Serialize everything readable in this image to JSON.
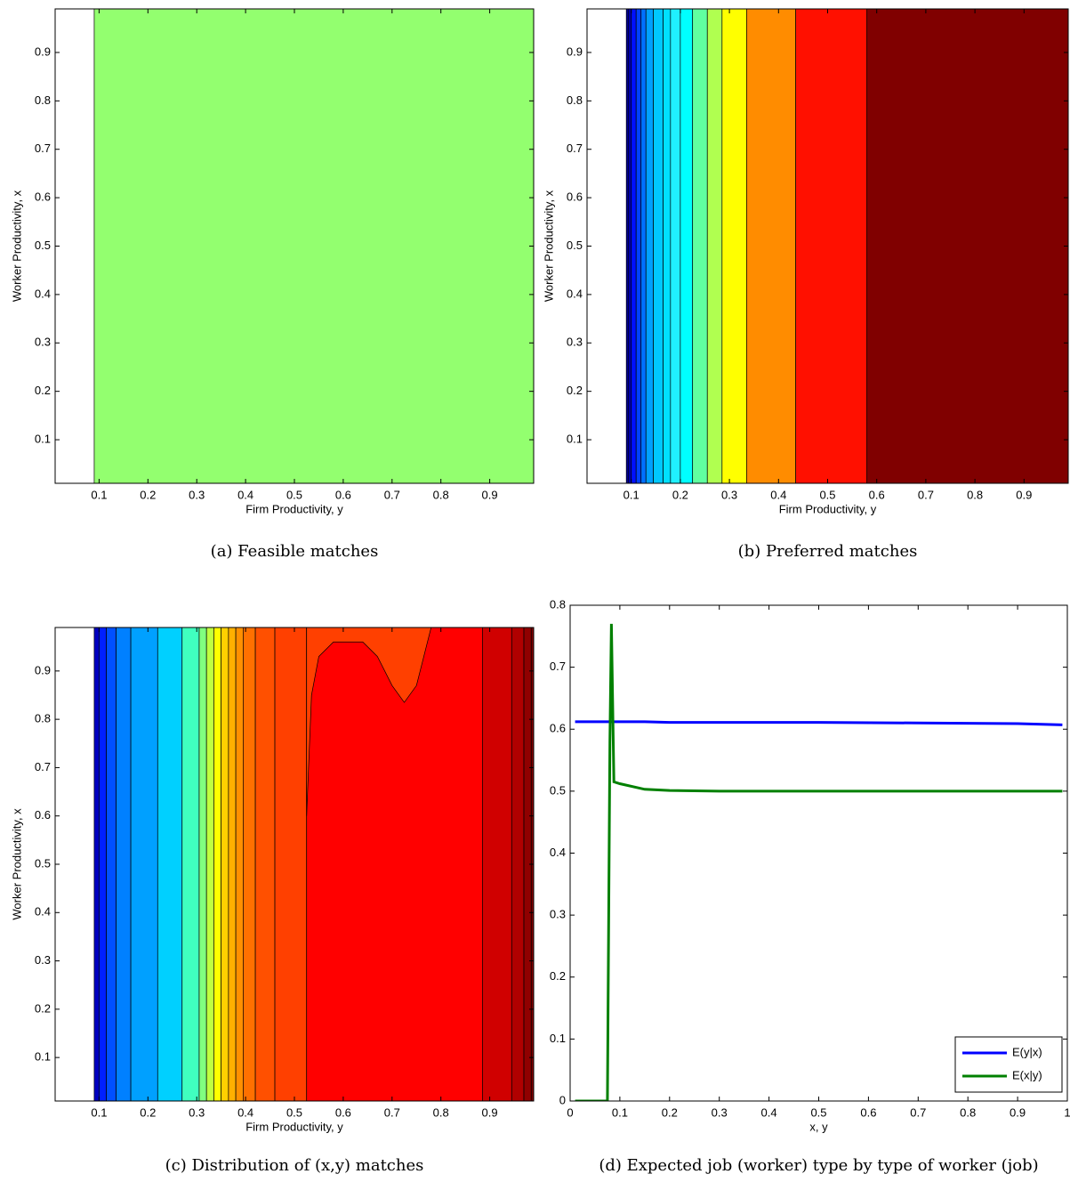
{
  "chart_data": [
    {
      "type": "contour",
      "caption": "(a)  Feasible matches",
      "xlabel": "Firm Productivity, y",
      "ylabel": "Worker Productivity, x",
      "xlim": [
        0.01,
        0.99
      ],
      "ylim": [
        0.01,
        0.99
      ],
      "xticks": [
        0.1,
        0.2,
        0.3,
        0.4,
        0.5,
        0.6,
        0.7,
        0.8,
        0.9
      ],
      "yticks": [
        0.1,
        0.2,
        0.3,
        0.4,
        0.5,
        0.6,
        0.7,
        0.8,
        0.9
      ],
      "bands": [
        {
          "x": 0.09,
          "color": "#93ff6f"
        }
      ]
    },
    {
      "type": "contour",
      "caption": "(b)  Preferred matches",
      "xlabel": "Firm Productivity, y",
      "ylabel": "Worker Productivity, x",
      "xlim": [
        0.01,
        0.99
      ],
      "ylim": [
        0.01,
        0.99
      ],
      "xticks": [
        0.1,
        0.2,
        0.3,
        0.4,
        0.5,
        0.6,
        0.7,
        0.8,
        0.9
      ],
      "yticks": [
        0.1,
        0.2,
        0.3,
        0.4,
        0.5,
        0.6,
        0.7,
        0.8,
        0.9
      ],
      "bands": [
        {
          "x": 0.09,
          "color": "#00008f"
        },
        {
          "x": 0.095,
          "color": "#0000cf"
        },
        {
          "x": 0.1,
          "color": "#0010ff"
        },
        {
          "x": 0.11,
          "color": "#0040ff"
        },
        {
          "x": 0.12,
          "color": "#0070ff"
        },
        {
          "x": 0.13,
          "color": "#00a0ff"
        },
        {
          "x": 0.145,
          "color": "#00c8ff"
        },
        {
          "x": 0.165,
          "color": "#00e0ff"
        },
        {
          "x": 0.18,
          "color": "#20f0ff"
        },
        {
          "x": 0.2,
          "color": "#00ffff"
        },
        {
          "x": 0.225,
          "color": "#60ffa0"
        },
        {
          "x": 0.255,
          "color": "#b0ff50"
        },
        {
          "x": 0.285,
          "color": "#ffff00"
        },
        {
          "x": 0.335,
          "color": "#ff8c00"
        },
        {
          "x": 0.435,
          "color": "#ff1000"
        },
        {
          "x": 0.58,
          "color": "#800000"
        }
      ]
    },
    {
      "type": "contour",
      "caption": "(c)  Distribution of (x,y) matches",
      "xlabel": "Firm Productivity, y",
      "ylabel": "Worker Productivity, x",
      "xlim": [
        0.01,
        0.99
      ],
      "ylim": [
        0.01,
        0.99
      ],
      "xticks": [
        0.1,
        0.2,
        0.3,
        0.4,
        0.5,
        0.6,
        0.7,
        0.8,
        0.9
      ],
      "yticks": [
        0.1,
        0.2,
        0.3,
        0.4,
        0.5,
        0.6,
        0.7,
        0.8,
        0.9
      ],
      "bands": [
        {
          "x": 0.09,
          "color": "#0000c0"
        },
        {
          "x": 0.1,
          "color": "#0020ff"
        },
        {
          "x": 0.115,
          "color": "#0050ff"
        },
        {
          "x": 0.135,
          "color": "#0080ff"
        },
        {
          "x": 0.165,
          "color": "#00a0ff"
        },
        {
          "x": 0.22,
          "color": "#00d0ff"
        },
        {
          "x": 0.27,
          "color": "#40ffbf"
        },
        {
          "x": 0.305,
          "color": "#80ff80"
        },
        {
          "x": 0.32,
          "color": "#bfff40"
        },
        {
          "x": 0.335,
          "color": "#ffff00"
        },
        {
          "x": 0.35,
          "color": "#ffd000"
        },
        {
          "x": 0.365,
          "color": "#ffb000"
        },
        {
          "x": 0.38,
          "color": "#ff9000"
        },
        {
          "x": 0.395,
          "color": "#ff7000"
        },
        {
          "x": 0.42,
          "color": "#ff5000"
        },
        {
          "x": 0.46,
          "color": "#ff4000"
        },
        {
          "x": 0.525,
          "color": "#ff0000"
        },
        {
          "x": 0.885,
          "color": "#d00000"
        },
        {
          "x": 0.945,
          "color": "#b00000"
        },
        {
          "x": 0.97,
          "color": "#900000"
        },
        {
          "x": 0.985,
          "color": "#800000"
        }
      ],
      "region": {
        "color": "#ff4000",
        "x": [
          0.525,
          0.535,
          0.55,
          0.58,
          0.64,
          0.67,
          0.7,
          0.725,
          0.75,
          0.77,
          0.78,
          0.525
        ],
        "y": [
          0.6,
          0.85,
          0.93,
          0.96,
          0.96,
          0.93,
          0.87,
          0.835,
          0.87,
          0.95,
          0.99,
          0.99
        ]
      }
    },
    {
      "type": "line",
      "caption": "(d)  Expected job (worker) type by type of worker (job)",
      "xlabel": "x, y",
      "xlim": [
        0,
        1
      ],
      "ylim": [
        0,
        0.8
      ],
      "xticks": [
        0,
        0.1,
        0.2,
        0.3,
        0.4,
        0.5,
        0.6,
        0.7,
        0.8,
        0.9,
        1
      ],
      "yticks": [
        0,
        0.1,
        0.2,
        0.3,
        0.4,
        0.5,
        0.6,
        0.7,
        0.8
      ],
      "legend": "lower right",
      "x": [
        0.01,
        0.05,
        0.075,
        0.08,
        0.083,
        0.088,
        0.1,
        0.15,
        0.2,
        0.3,
        0.5,
        0.7,
        0.9,
        0.99
      ],
      "series": [
        {
          "name": "E(y|x)",
          "color": "#0000ff",
          "values": [
            0.612,
            0.612,
            0.612,
            0.612,
            0.612,
            0.612,
            0.612,
            0.612,
            0.611,
            0.611,
            0.611,
            0.61,
            0.609,
            0.607
          ]
        },
        {
          "name": "E(x|y)",
          "color": "#008000",
          "values": [
            0,
            0,
            0,
            0.58,
            0.77,
            0.515,
            0.512,
            0.503,
            0.501,
            0.5,
            0.5,
            0.5,
            0.5,
            0.5
          ]
        }
      ]
    }
  ]
}
